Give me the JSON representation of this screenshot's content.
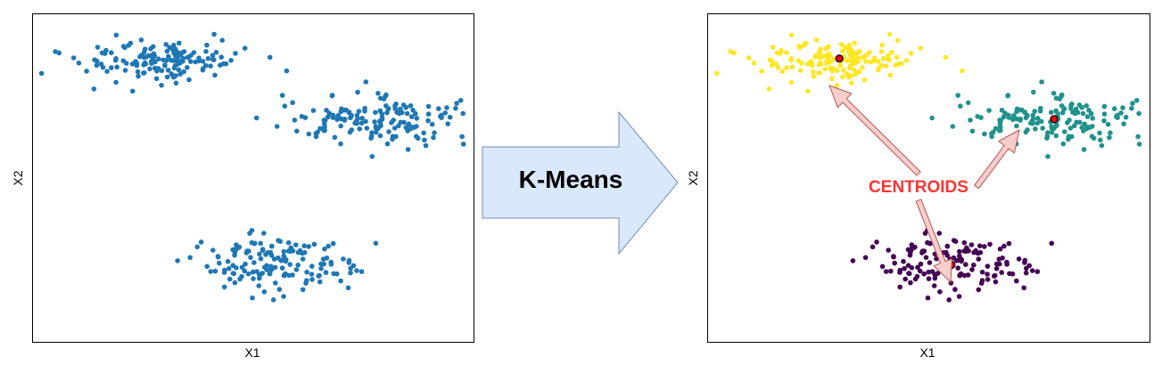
{
  "chart_data": [
    {
      "type": "scatter",
      "title": "",
      "xlabel": "X1",
      "ylabel": "X2",
      "grid": false,
      "series": [
        {
          "color": "#1f77b4",
          "clusters": [
            {
              "center": [
                -6.5,
                7.2
              ],
              "spread": [
                1.6,
                0.65
              ],
              "n": 150
            },
            {
              "center": [
                2.5,
                3.6
              ],
              "spread": [
                1.7,
                0.7
              ],
              "n": 150
            },
            {
              "center": [
                -1.8,
                -5.2
              ],
              "spread": [
                1.6,
                0.8
              ],
              "n": 150
            }
          ]
        }
      ]
    },
    {
      "type": "scatter",
      "title": "",
      "xlabel": "X1",
      "ylabel": "X2",
      "grid": false,
      "series": [
        {
          "color": "#fde725",
          "clusters": [
            {
              "center": [
                -6.5,
                7.2
              ],
              "spread": [
                1.6,
                0.65
              ],
              "n": 150
            }
          ]
        },
        {
          "color": "#21918c",
          "clusters": [
            {
              "center": [
                2.5,
                3.6
              ],
              "spread": [
                1.7,
                0.7
              ],
              "n": 150
            }
          ]
        },
        {
          "color": "#440154",
          "clusters": [
            {
              "center": [
                -1.8,
                -5.2
              ],
              "spread": [
                1.6,
                0.8
              ],
              "n": 150
            }
          ]
        }
      ],
      "centroids": [
        [
          -6.5,
          7.3
        ],
        [
          2.5,
          3.6
        ],
        [
          -1.8,
          -5.3
        ]
      ],
      "centroid_color": "#e8000b"
    }
  ],
  "axes_range": {
    "xlim": [
      -12,
      6.5
    ],
    "ylim": [
      -10,
      10
    ]
  },
  "arrow": {
    "label": "K-Means",
    "fill": "#dae8fc",
    "stroke": "#6c8ebf"
  },
  "annotation": {
    "label": "CENTROIDS",
    "color": "#ff3333",
    "arrow_fill": "#f8cecc",
    "arrow_stroke": "#b85450"
  }
}
